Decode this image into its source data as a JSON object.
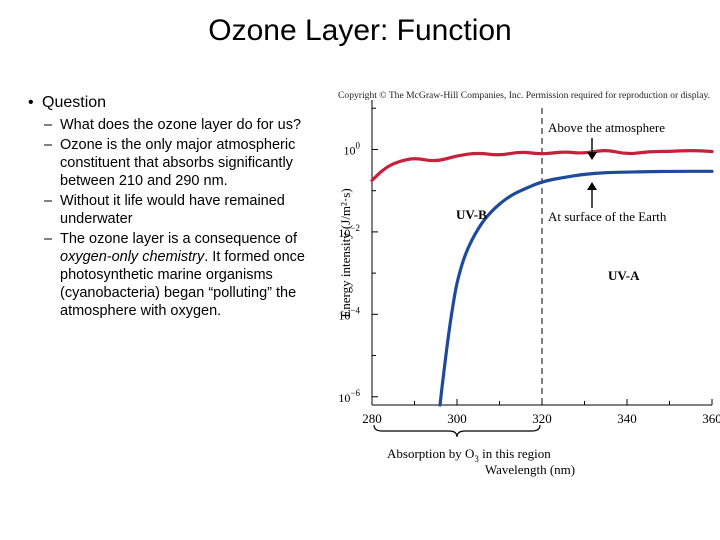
{
  "slide": {
    "title": "Ozone Layer: Function",
    "bullet": "Question",
    "subpoints": [
      "What does the ozone layer do for us?",
      "Ozone is the only major atmospheric constituent that absorbs significantly between 210 and 290 nm.",
      "Without it life would have remained underwater"
    ],
    "last_point": {
      "before": "The ozone layer is a consequence of ",
      "emphasis": "oxygen-only chemistry",
      "after": ". It formed once photosynthetic marine organisms (cyanobacteria) began “polluting” the atmosphere with oxygen."
    }
  },
  "figure": {
    "copyright": "Copyright © The McGraw-Hill Companies, Inc. Permission required for reproduction or display."
  },
  "chart_data": {
    "type": "line",
    "xlabel": "Wavelength (nm)",
    "ylabel": "Energy intensity (J/m²·s)",
    "x_ticks": [
      "280",
      "300",
      "320",
      "340",
      "360"
    ],
    "y_ticks": [
      {
        "base": "10",
        "exp": "0"
      },
      {
        "base": "10",
        "exp": "−2"
      },
      {
        "base": "10",
        "exp": "−4"
      },
      {
        "base": "10",
        "exp": "−6"
      }
    ],
    "xlim": [
      280,
      360
    ],
    "ylim": [
      -6.2,
      1.2
    ],
    "y_scale": "log",
    "series": [
      {
        "color": "#c8203c",
        "x": [
          280,
          283,
          286,
          290,
          295,
          300,
          305,
          310,
          315,
          320,
          325,
          330,
          335,
          340,
          345,
          350,
          355,
          360
        ],
        "y": [
          -0.75,
          -0.45,
          -0.3,
          -0.2,
          -0.3,
          -0.15,
          -0.08,
          -0.15,
          -0.05,
          -0.12,
          -0.05,
          -0.1,
          0.0,
          -0.12,
          -0.05,
          -0.05,
          -0.02,
          -0.05
        ]
      },
      {
        "color": "#1e4a9c",
        "x": [
          296,
          297,
          298,
          299,
          300,
          302,
          305,
          308,
          312,
          316,
          320,
          325,
          330,
          335,
          340,
          345,
          350,
          360
        ],
        "y": [
          -6.2,
          -5.3,
          -4.5,
          -3.8,
          -3.2,
          -2.5,
          -1.9,
          -1.5,
          -1.15,
          -0.95,
          -0.78,
          -0.68,
          -0.6,
          -0.56,
          -0.55,
          -0.54,
          -0.53,
          -0.53
        ]
      }
    ],
    "reference_line": {
      "x": 320,
      "style": "dashed"
    },
    "annotations": {
      "above": "Above the atmosphere",
      "surface": "At surface of the Earth",
      "uvb": "UV-B",
      "uva": "UV-A",
      "absorption_prefix": "Absorption by O",
      "absorption_sub": "3",
      "absorption_suffix": " in this region"
    },
    "absorption_range": [
      280,
      320
    ],
    "grid": false
  }
}
